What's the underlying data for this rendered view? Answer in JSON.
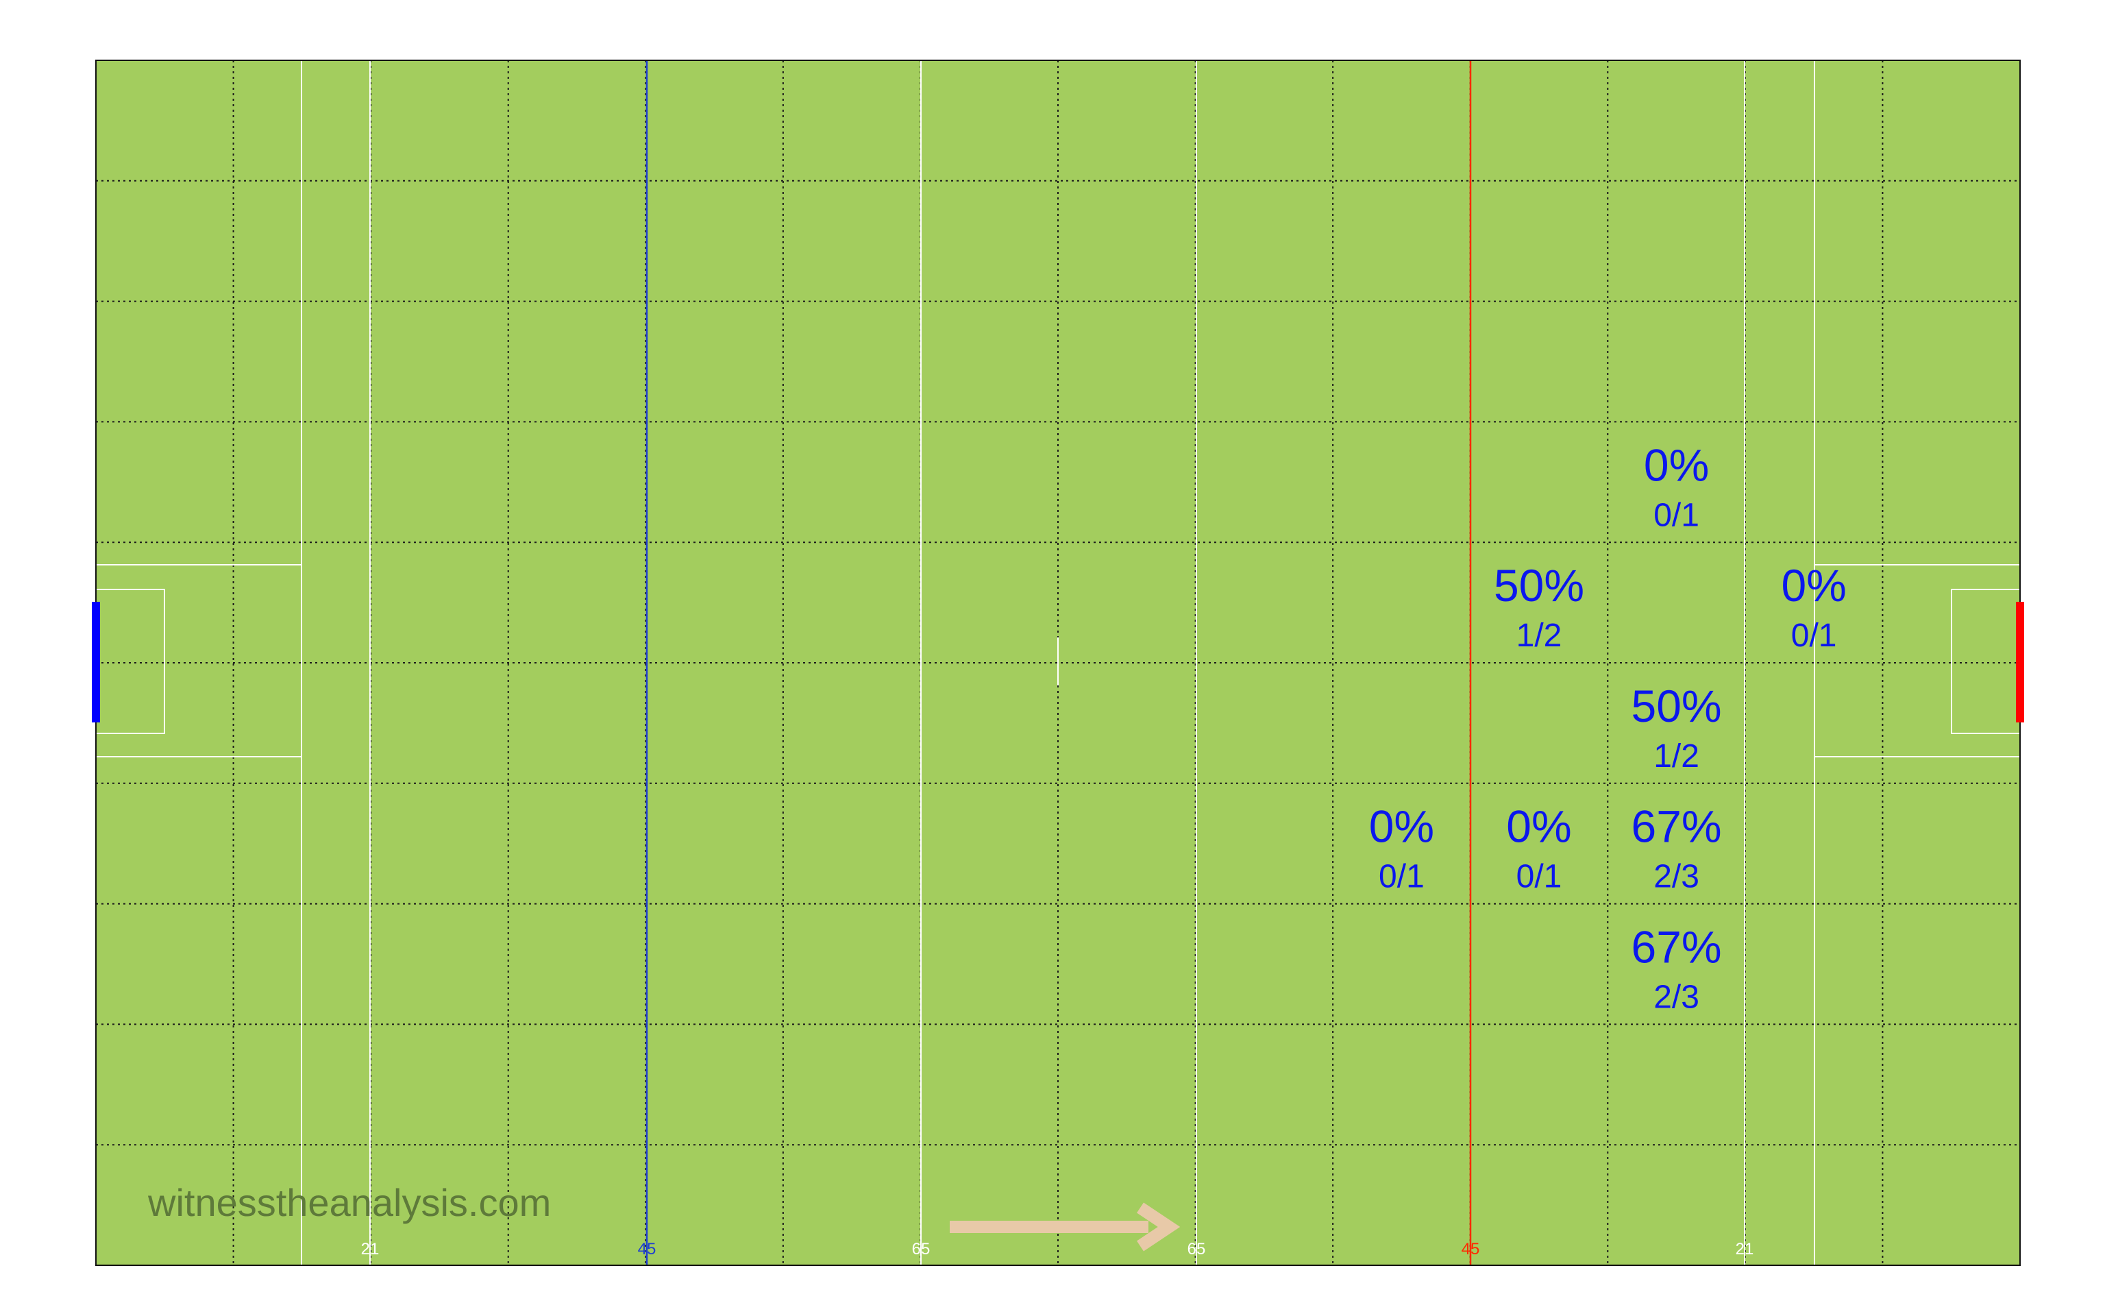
{
  "watermark": "witnesstheanalysis.com",
  "colors": {
    "grass": "#a3cd5e",
    "white_line": "#ffffff",
    "grid": "#1a1a1a",
    "own_45": "#1f3fd0",
    "opp_45": "#ff2a00",
    "stat_text": "#0a17ee",
    "arrow": "#e8c9a8",
    "watermark": "#5e7a3a",
    "left_goal": "#0000ff",
    "right_goal": "#ff0000"
  },
  "distance_labels": [
    {
      "text": "21",
      "color": "white"
    },
    {
      "text": "45",
      "color": "blue"
    },
    {
      "text": "65",
      "color": "white"
    },
    {
      "text": "65",
      "color": "white"
    },
    {
      "text": "45",
      "color": "red"
    },
    {
      "text": "21",
      "color": "white"
    }
  ],
  "zones": [
    {
      "pct": "0%",
      "frac": "0/1",
      "col": 11,
      "row": 3
    },
    {
      "pct": "50%",
      "frac": "1/2",
      "col": 10,
      "row": 4
    },
    {
      "pct": "0%",
      "frac": "0/1",
      "col": 12,
      "row": 4
    },
    {
      "pct": "50%",
      "frac": "1/2",
      "col": 11,
      "row": 5
    },
    {
      "pct": "0%",
      "frac": "0/1",
      "col": 9,
      "row": 6
    },
    {
      "pct": "0%",
      "frac": "0/1",
      "col": 10,
      "row": 6
    },
    {
      "pct": "67%",
      "frac": "2/3",
      "col": 11,
      "row": 6
    },
    {
      "pct": "67%",
      "frac": "2/3",
      "col": 11,
      "row": 7
    }
  ]
}
